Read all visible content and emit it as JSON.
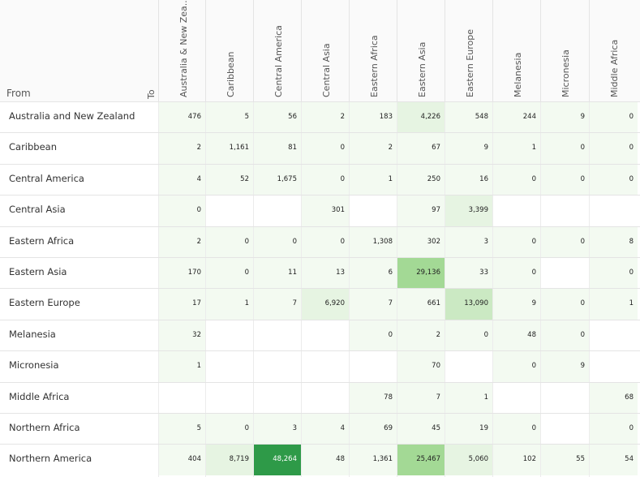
{
  "header": {
    "from_label": "From",
    "to_label": "To"
  },
  "columns": [
    "Australia & New Zea..",
    "Caribbean",
    "Central America",
    "Central Asia",
    "Eastern Africa",
    "Eastern Asia",
    "Eastern Europe",
    "Melanesia",
    "Micronesia",
    "Middle Africa"
  ],
  "rows": [
    {
      "label": "Australia and New Zealand",
      "values": [
        "476",
        "5",
        "56",
        "2",
        "183",
        "4,226",
        "548",
        "244",
        "9",
        "0"
      ]
    },
    {
      "label": "Caribbean",
      "values": [
        "2",
        "1,161",
        "81",
        "0",
        "2",
        "67",
        "9",
        "1",
        "0",
        "0"
      ]
    },
    {
      "label": "Central America",
      "values": [
        "4",
        "52",
        "1,675",
        "0",
        "1",
        "250",
        "16",
        "0",
        "0",
        "0"
      ]
    },
    {
      "label": "Central Asia",
      "values": [
        "0",
        "",
        "",
        "301",
        "",
        "97",
        "3,399",
        "",
        "",
        ""
      ]
    },
    {
      "label": "Eastern Africa",
      "values": [
        "2",
        "0",
        "0",
        "0",
        "1,308",
        "302",
        "3",
        "0",
        "0",
        "8"
      ]
    },
    {
      "label": "Eastern Asia",
      "values": [
        "170",
        "0",
        "11",
        "13",
        "6",
        "29,136",
        "33",
        "0",
        "",
        "0"
      ]
    },
    {
      "label": "Eastern Europe",
      "values": [
        "17",
        "1",
        "7",
        "6,920",
        "7",
        "661",
        "13,090",
        "9",
        "0",
        "1"
      ]
    },
    {
      "label": "Melanesia",
      "values": [
        "32",
        "",
        "",
        "",
        "0",
        "2",
        "0",
        "48",
        "0",
        ""
      ]
    },
    {
      "label": "Micronesia",
      "values": [
        "1",
        "",
        "",
        "",
        "",
        "70",
        "",
        "0",
        "9",
        ""
      ]
    },
    {
      "label": "Middle Africa",
      "values": [
        "",
        "",
        "",
        "",
        "78",
        "7",
        "1",
        "",
        "",
        "68"
      ]
    },
    {
      "label": "Northern Africa",
      "values": [
        "5",
        "0",
        "3",
        "4",
        "69",
        "45",
        "19",
        "0",
        "",
        "0"
      ]
    },
    {
      "label": "Northern America",
      "values": [
        "404",
        "8,719",
        "48,264",
        "48",
        "1,361",
        "25,467",
        "5,060",
        "102",
        "55",
        "54"
      ]
    }
  ],
  "colors": {
    "cell_faint": "#f3faf1",
    "cell_light": "#e6f4e2",
    "cell_medium": "#cbe9c3",
    "cell_strong": "#a3d995",
    "cell_darkest": "#2e9a48",
    "header_bg": "#fafafa",
    "grid_line": "#e4e4e4"
  }
}
